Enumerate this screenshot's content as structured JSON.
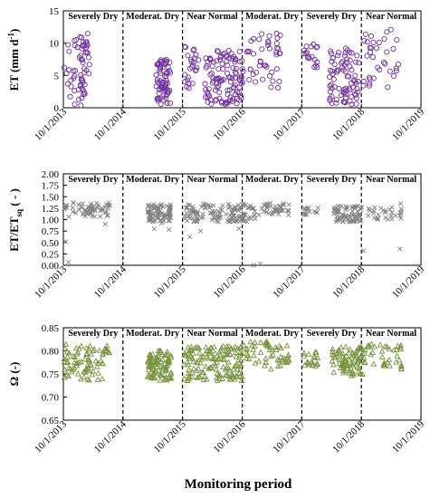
{
  "figure": {
    "xlabel": "Monitoring period",
    "x_ticks": [
      "10/1/2013",
      "10/1/2014",
      "10/1/2015",
      "10/1/2016",
      "10/1/2017",
      "10/1/2018",
      "10/1/2019"
    ],
    "periods": [
      {
        "label": "Severely Dry",
        "start": "2013-10-01",
        "end": "2014-10-01"
      },
      {
        "label": "Moderat. Dry",
        "start": "2014-10-01",
        "end": "2015-10-01"
      },
      {
        "label": "Near Normal",
        "start": "2015-10-01",
        "end": "2016-10-01"
      },
      {
        "label": "Moderat. Dry",
        "start": "2016-10-01",
        "end": "2017-10-01"
      },
      {
        "label": "Severely Dry",
        "start": "2017-10-01",
        "end": "2018-10-01"
      },
      {
        "label": "Near Normal",
        "start": "2018-10-01",
        "end": "2019-10-01"
      }
    ],
    "boundary_dates": [
      "2014-10-01",
      "2015-10-01",
      "2016-10-01",
      "2017-10-01",
      "2018-10-01"
    ],
    "colors": {
      "panel1": "#7030a0",
      "panel2": "#808080",
      "panel3": "#76933c"
    },
    "markers": {
      "panel1": "circle",
      "panel2": "x",
      "panel3": "triangle"
    }
  },
  "chart_data": [
    {
      "type": "scatter",
      "ylabel": "ET (mm d-1)",
      "ylabel_main": "ET (mm d",
      "ylabel_sup": "-1",
      "ylabel_end": ")",
      "ylim": [
        0,
        15
      ],
      "yticks": [
        "0",
        "5",
        "10",
        "15"
      ],
      "series": [
        {
          "clusters": [
            {
              "from": "2013-10-03",
              "to": "2014-03-10",
              "n": 42,
              "lo": 0.3,
              "hi": 11.0
            },
            {
              "from": "2014-01-15",
              "to": "2014-03-10",
              "n": 22,
              "lo": 2.0,
              "hi": 11.5
            },
            {
              "from": "2015-04-20",
              "to": "2015-07-20",
              "n": 70,
              "lo": 0.5,
              "hi": 7.5
            },
            {
              "from": "2015-10-10",
              "to": "2016-01-10",
              "n": 25,
              "lo": 3.0,
              "hi": 9.5
            },
            {
              "from": "2016-02-15",
              "to": "2016-10-05",
              "n": 110,
              "lo": 0.5,
              "hi": 9.0
            },
            {
              "from": "2016-10-05",
              "to": "2017-05-25",
              "n": 45,
              "lo": 3.0,
              "hi": 11.5
            },
            {
              "from": "2017-10-05",
              "to": "2018-01-10",
              "n": 18,
              "lo": 6.0,
              "hi": 10.5
            },
            {
              "from": "2018-03-20",
              "to": "2018-09-20",
              "n": 80,
              "lo": 0.5,
              "hi": 9.5
            },
            {
              "from": "2018-10-10",
              "to": "2019-05-20",
              "n": 35,
              "lo": 3.0,
              "hi": 12.5
            }
          ]
        }
      ]
    },
    {
      "type": "scatter",
      "ylabel": "ET/ETsq (-)",
      "ylabel_main": "ET/ET",
      "ylabel_sub": "sq",
      "ylabel_end": " ( - )",
      "ylim": [
        0,
        2
      ],
      "yticks": [
        "0.00",
        "0.25",
        "0.50",
        "0.75",
        "1.00",
        "1.25",
        "1.50",
        "1.75",
        "2.00"
      ],
      "series": [
        {
          "clusters": [
            {
              "from": "2013-10-03",
              "to": "2014-07-15",
              "n": 60,
              "lo": 1.05,
              "hi": 1.38
            },
            {
              "from": "2015-03-01",
              "to": "2015-07-25",
              "n": 80,
              "lo": 0.95,
              "hi": 1.35
            },
            {
              "from": "2015-10-10",
              "to": "2016-12-20",
              "n": 130,
              "lo": 0.95,
              "hi": 1.35
            },
            {
              "from": "2017-01-10",
              "to": "2017-07-15",
              "n": 40,
              "lo": 1.1,
              "hi": 1.38
            },
            {
              "from": "2017-10-05",
              "to": "2018-01-10",
              "n": 15,
              "lo": 1.1,
              "hi": 1.28
            },
            {
              "from": "2018-04-10",
              "to": "2018-10-10",
              "n": 70,
              "lo": 0.95,
              "hi": 1.3
            },
            {
              "from": "2018-10-15",
              "to": "2019-06-10",
              "n": 30,
              "lo": 1.0,
              "hi": 1.28
            }
          ],
          "outliers": [
            {
              "x": "2013-10-15",
              "y": 0.52
            },
            {
              "x": "2013-11-01",
              "y": 0.07
            },
            {
              "x": "2014-06-15",
              "y": 0.9
            },
            {
              "x": "2015-04-10",
              "y": 0.8
            },
            {
              "x": "2015-05-25",
              "y": 0.92
            },
            {
              "x": "2015-07-10",
              "y": 0.78
            },
            {
              "x": "2015-11-15",
              "y": 0.62
            },
            {
              "x": "2016-01-20",
              "y": 0.75
            },
            {
              "x": "2016-09-10",
              "y": 0.8
            },
            {
              "x": "2016-12-10",
              "y": 0.0
            },
            {
              "x": "2017-01-20",
              "y": 0.03
            },
            {
              "x": "2018-10-15",
              "y": 0.32
            },
            {
              "x": "2019-05-25",
              "y": 0.36
            },
            {
              "x": "2019-05-30",
              "y": 1.35
            }
          ]
        }
      ]
    },
    {
      "type": "scatter",
      "ylabel": "Ω (-)",
      "ylabel_main": "Ω (-)",
      "ylim": [
        0.65,
        0.85
      ],
      "yticks": [
        "0.65",
        "0.70",
        "0.75",
        "0.80",
        "0.85"
      ],
      "series": [
        {
          "clusters": [
            {
              "from": "2013-10-03",
              "to": "2014-07-15",
              "n": 80,
              "lo": 0.735,
              "hi": 0.815
            },
            {
              "from": "2015-03-01",
              "to": "2015-07-25",
              "n": 90,
              "lo": 0.735,
              "hi": 0.8
            },
            {
              "from": "2015-10-10",
              "to": "2016-10-05",
              "n": 140,
              "lo": 0.735,
              "hi": 0.81
            },
            {
              "from": "2016-10-05",
              "to": "2017-07-15",
              "n": 55,
              "lo": 0.76,
              "hi": 0.82
            },
            {
              "from": "2017-10-05",
              "to": "2018-01-10",
              "n": 20,
              "lo": 0.765,
              "hi": 0.8
            },
            {
              "from": "2018-04-01",
              "to": "2018-10-10",
              "n": 80,
              "lo": 0.745,
              "hi": 0.81
            },
            {
              "from": "2018-10-15",
              "to": "2019-06-10",
              "n": 40,
              "lo": 0.76,
              "hi": 0.815
            }
          ]
        }
      ]
    }
  ]
}
